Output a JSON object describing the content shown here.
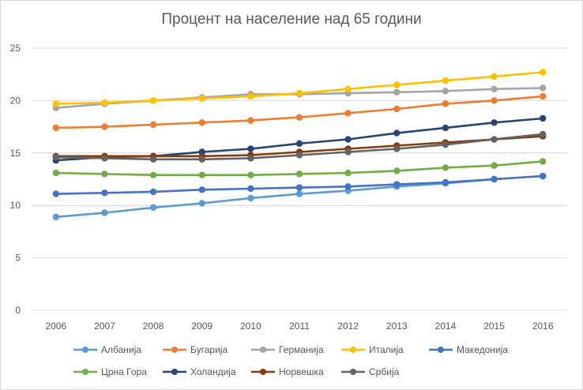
{
  "chart_data": {
    "type": "line",
    "title": "Процент на население над 65 години",
    "xlabel": "",
    "ylabel": "",
    "x": [
      "2006",
      "2007",
      "2008",
      "2009",
      "2010",
      "2011",
      "2012",
      "2013",
      "2014",
      "2015",
      "2016"
    ],
    "ylim": [
      0,
      25
    ],
    "yticks": [
      0,
      5,
      10,
      15,
      20,
      25
    ],
    "grid": true,
    "legend_position": "bottom",
    "series": [
      {
        "name": "Албанија",
        "color": "#5b9bd5",
        "values": [
          8.9,
          9.3,
          9.8,
          10.2,
          10.7,
          11.1,
          11.4,
          11.8,
          12.1,
          12.5,
          12.8
        ]
      },
      {
        "name": "Бугарија",
        "color": "#ed7d31",
        "values": [
          17.4,
          17.5,
          17.7,
          17.9,
          18.1,
          18.4,
          18.8,
          19.2,
          19.7,
          20.0,
          20.4
        ]
      },
      {
        "name": "Германија",
        "color": "#a5a5a5",
        "values": [
          19.3,
          19.7,
          20.0,
          20.3,
          20.6,
          20.6,
          20.7,
          20.8,
          20.9,
          21.1,
          21.2
        ]
      },
      {
        "name": "Италија",
        "color": "#ffc000",
        "values": [
          19.7,
          19.8,
          20.0,
          20.2,
          20.4,
          20.7,
          21.1,
          21.5,
          21.9,
          22.3,
          22.7
        ]
      },
      {
        "name": "Македонија",
        "color": "#4472c4",
        "values": [
          11.1,
          11.2,
          11.3,
          11.5,
          11.6,
          11.7,
          11.8,
          12.0,
          12.2,
          12.5,
          12.8
        ]
      },
      {
        "name": "Црна Гора",
        "color": "#70ad47",
        "values": [
          13.1,
          13.0,
          12.9,
          12.9,
          12.9,
          13.0,
          13.1,
          13.3,
          13.6,
          13.8,
          14.2
        ]
      },
      {
        "name": "Холандија",
        "color": "#264478",
        "values": [
          14.3,
          14.6,
          14.7,
          15.1,
          15.4,
          15.9,
          16.3,
          16.9,
          17.4,
          17.9,
          18.3
        ]
      },
      {
        "name": "Норвешка",
        "color": "#843c0c",
        "values": [
          14.7,
          14.7,
          14.7,
          14.7,
          14.8,
          15.1,
          15.4,
          15.7,
          16.0,
          16.3,
          16.6
        ]
      },
      {
        "name": "Србија",
        "color": "#636363",
        "values": [
          14.6,
          14.5,
          14.4,
          14.4,
          14.5,
          14.8,
          15.1,
          15.4,
          15.8,
          16.3,
          16.8
        ]
      }
    ]
  }
}
